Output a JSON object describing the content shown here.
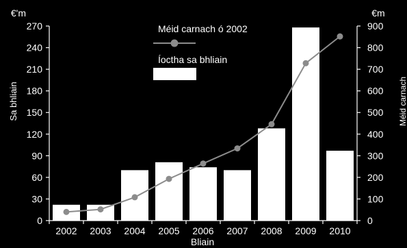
{
  "chart_data": {
    "type": "bar",
    "categories": [
      "2002",
      "2003",
      "2004",
      "2005",
      "2006",
      "2007",
      "2008",
      "2009",
      "2010"
    ],
    "series": [
      {
        "name": "Íoctha sa bhliain",
        "type": "bar",
        "axis": "left",
        "values": [
          22,
          22,
          70,
          81,
          74,
          70,
          128,
          268,
          97
        ]
      },
      {
        "name": "Méid carnach ó 2002",
        "type": "line",
        "axis": "right",
        "values": [
          40,
          52,
          108,
          193,
          264,
          334,
          446,
          728,
          852
        ]
      }
    ],
    "y_left": {
      "unit": "€'m",
      "label": "Sa bhliain",
      "range": [
        0,
        270
      ],
      "ticks": [
        0,
        30,
        60,
        90,
        120,
        150,
        180,
        210,
        240,
        270
      ]
    },
    "y_right": {
      "unit": "€m",
      "label": "Méid carnach",
      "range": [
        0,
        900
      ],
      "ticks": [
        0,
        100,
        200,
        300,
        400,
        500,
        600,
        700,
        800,
        900
      ]
    },
    "xlabel": "Bliain",
    "legend_position": "top-center",
    "grid": false,
    "colors": {
      "background": "#000000",
      "bars": "#ffffff",
      "line": "#8c8c8c",
      "axes": "#ffffff"
    }
  }
}
